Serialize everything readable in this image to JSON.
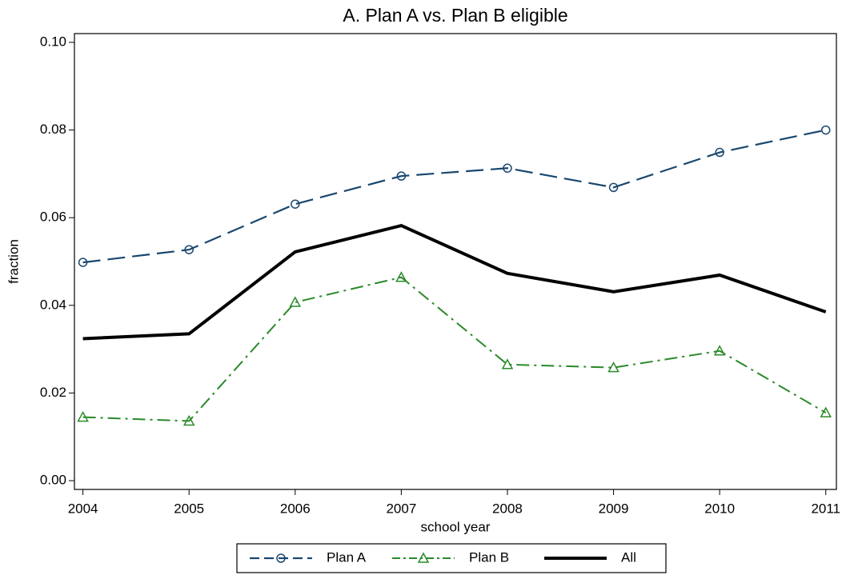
{
  "chart_data": {
    "type": "line",
    "title": "A. Plan A vs. Plan B eligible",
    "x_label": "school year",
    "y_label": "fraction",
    "x": [
      2004,
      2005,
      2006,
      2007,
      2008,
      2009,
      2010,
      2011
    ],
    "series": [
      {
        "name": "Plan A",
        "color": "#1a476f",
        "linestyle": "dash",
        "marker": "circle",
        "values": [
          0.0498,
          0.0527,
          0.0631,
          0.0695,
          0.0713,
          0.0669,
          0.0749,
          0.08
        ]
      },
      {
        "name": "Plan B",
        "color": "#2a8a2a",
        "linestyle": "dashdot",
        "marker": "triangle",
        "values": [
          0.0145,
          0.0136,
          0.0407,
          0.0464,
          0.0265,
          0.0258,
          0.0296,
          0.0155
        ]
      },
      {
        "name": "All",
        "color": "#000000",
        "linestyle": "solid",
        "marker": null,
        "values": [
          0.0324,
          0.0335,
          0.0522,
          0.0582,
          0.0473,
          0.0431,
          0.0469,
          0.0385
        ]
      }
    ],
    "xlim": [
      2003.92,
      2011.1
    ],
    "xticks": [
      2004,
      2005,
      2006,
      2007,
      2008,
      2009,
      2010,
      2011
    ],
    "ylim": [
      -0.002,
      0.102
    ],
    "yticks": [
      {
        "value": 0,
        "label": "0.00"
      },
      {
        "value": 0.02,
        "label": "0.02"
      },
      {
        "value": 0.04,
        "label": "0.04"
      },
      {
        "value": 0.06,
        "label": "0.06"
      },
      {
        "value": 0.08,
        "label": "0.08"
      },
      {
        "value": 0.1,
        "label": "0.10"
      }
    ],
    "grid": false,
    "legend": "bottom"
  }
}
